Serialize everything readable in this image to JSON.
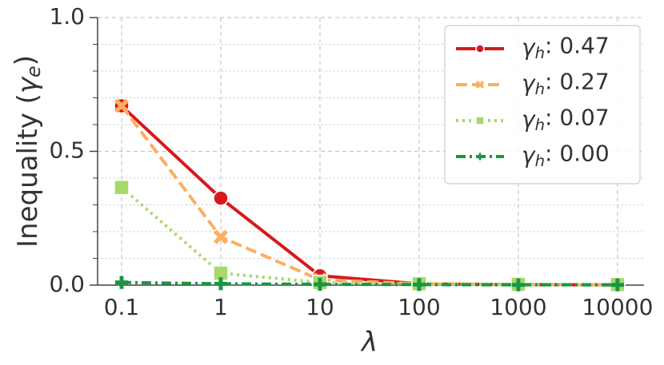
{
  "chart_data": {
    "type": "line",
    "xlabel": "λ",
    "ylabel": "Inequality (γe)",
    "x": [
      0.1,
      1,
      10,
      100,
      1000,
      10000
    ],
    "xscale": "log",
    "xlim": [
      0.0573,
      18500
    ],
    "xticks": [
      0.1,
      1,
      10,
      100,
      1000,
      10000
    ],
    "ylim": [
      0,
      1
    ],
    "yticks": [
      {
        "value": 0,
        "label": "0.0"
      },
      0.5,
      {
        "value": 1,
        "label": "1.0"
      }
    ],
    "y_minor_ticks": [
      0.1,
      0.2,
      0.3,
      0.4,
      0.6,
      0.7,
      0.8,
      0.9
    ],
    "grid": true,
    "legend": "upper right",
    "series": [
      {
        "name": "γh: 0.47",
        "color": "#d7191c",
        "linestyle": "solid",
        "marker": "circle",
        "values": [
          0.67,
          0.325,
          0.035,
          0.005,
          0.002,
          0.001
        ]
      },
      {
        "name": "γh: 0.27",
        "color": "#fdae61",
        "linestyle": "dashed",
        "marker": "x",
        "values": [
          0.67,
          0.18,
          0.02,
          0.005,
          0.002,
          0.001
        ]
      },
      {
        "name": "γh: 0.07",
        "color": "#a6d96a",
        "linestyle": "dotted",
        "marker": "square",
        "values": [
          0.365,
          0.045,
          0.01,
          0.005,
          0.003,
          0.002
        ]
      },
      {
        "name": "γh: 0.00",
        "color": "#1a9641",
        "linestyle": "dashdot",
        "marker": "plus",
        "values": [
          0.01,
          0.005,
          0.003,
          0.002,
          0.001,
          0.001
        ]
      }
    ]
  }
}
